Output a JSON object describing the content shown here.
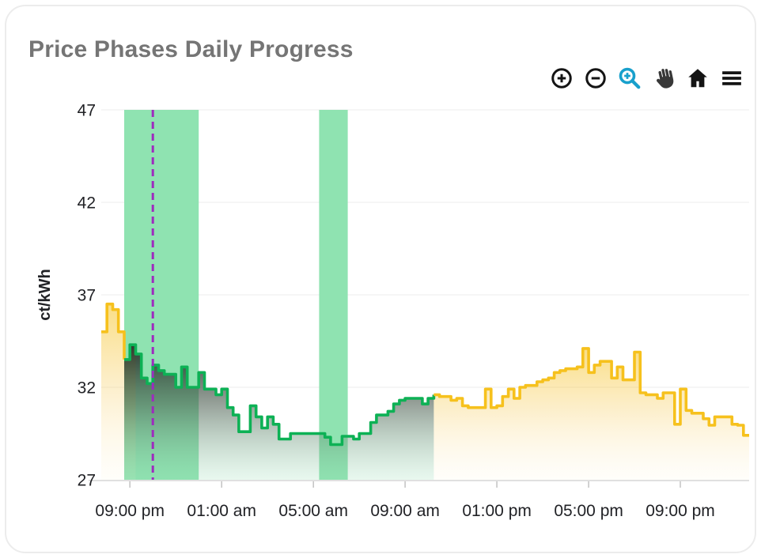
{
  "header": {
    "title": "Price Phases Daily Progress"
  },
  "toolbar": {
    "buttons": [
      {
        "name": "zoom-in",
        "icon": "zoom-in-icon"
      },
      {
        "name": "zoom-out",
        "icon": "zoom-out-icon"
      },
      {
        "name": "box-zoom",
        "icon": "magnifier-plus-icon",
        "active_color": "#18a0cc"
      },
      {
        "name": "pan",
        "icon": "hand-icon"
      },
      {
        "name": "reset-view",
        "icon": "home-icon"
      },
      {
        "name": "menu",
        "icon": "hamburger-icon"
      }
    ]
  },
  "chart_data": {
    "type": "step_area",
    "title": "Price Phases Daily Progress",
    "xlabel": "",
    "ylabel": "ct/kWh",
    "x_axis": {
      "min_hour": 19.75,
      "max_hour": 48,
      "ticks": [
        {
          "hour": 21,
          "label": "09:00 pm"
        },
        {
          "hour": 25,
          "label": "01:00 am"
        },
        {
          "hour": 29,
          "label": "05:00 am"
        },
        {
          "hour": 33,
          "label": "09:00 am"
        },
        {
          "hour": 37,
          "label": "01:00 pm"
        },
        {
          "hour": 41,
          "label": "05:00 pm"
        },
        {
          "hour": 45,
          "label": "09:00 pm"
        }
      ]
    },
    "y_axis": {
      "min": 27,
      "max": 47,
      "ticks": [
        27,
        32,
        37,
        42,
        47
      ],
      "label": "ct/kWh"
    },
    "x_start_hour": 19.75,
    "step_hours": 0.25,
    "values": [
      35.0,
      36.5,
      36.2,
      35.0,
      33.5,
      34.3,
      33.8,
      32.5,
      32.2,
      33.2,
      32.9,
      32.7,
      32.7,
      32.0,
      33.1,
      32.0,
      32.0,
      32.8,
      31.9,
      31.9,
      31.6,
      31.9,
      30.9,
      30.5,
      29.6,
      29.6,
      31.0,
      30.4,
      29.8,
      30.4,
      30.0,
      29.2,
      29.2,
      29.5,
      29.5,
      29.5,
      29.5,
      29.5,
      29.5,
      29.3,
      28.9,
      28.9,
      29.35,
      29.35,
      29.2,
      29.5,
      29.5,
      30.1,
      30.5,
      30.5,
      30.7,
      31.1,
      31.3,
      31.4,
      31.4,
      31.4,
      31.1,
      31.4,
      31.6,
      31.5,
      31.5,
      31.3,
      31.4,
      31.0,
      30.9,
      30.9,
      30.9,
      31.9,
      30.9,
      31.0,
      31.5,
      31.9,
      31.4,
      32.0,
      32.1,
      32.1,
      32.3,
      32.4,
      32.5,
      32.8,
      32.9,
      33.0,
      33.0,
      33.1,
      34.1,
      32.8,
      33.2,
      33.4,
      33.4,
      32.5,
      33.1,
      32.4,
      32.4,
      33.9,
      31.7,
      31.6,
      31.6,
      31.4,
      31.7,
      31.7,
      30.0,
      31.9,
      30.75,
      30.6,
      30.6,
      30.3,
      29.95,
      30.4,
      30.4,
      30.4,
      30.0,
      29.95,
      29.4
    ],
    "segments": [
      {
        "phase": "normal",
        "from": 0,
        "to": 4,
        "fill_overlap_steps": 2
      },
      {
        "phase": "cheap",
        "from": 4,
        "to": 58
      },
      {
        "phase": "normal",
        "from": 58,
        "to": 113
      }
    ],
    "phases": {
      "normal": {
        "line": "#f6c11d"
      },
      "cheap": {
        "line": "#0db155"
      }
    },
    "bands": [
      {
        "from_hour": 20.75,
        "to_hour": 24.0
      },
      {
        "from_hour": 29.25,
        "to_hour": 30.5
      }
    ],
    "band_color": "#8fe3b1",
    "now_line": {
      "hour": 22.0,
      "color": "#9e2bbe"
    },
    "colors": {
      "grid": "#f0f0f0",
      "axis_line": "#d6d6d6",
      "tick": "#c6c6c6",
      "label": "#212226",
      "title": "#757575",
      "active_tool": "#18a0cc"
    },
    "grid": "horizontal-only",
    "legend": "none"
  }
}
